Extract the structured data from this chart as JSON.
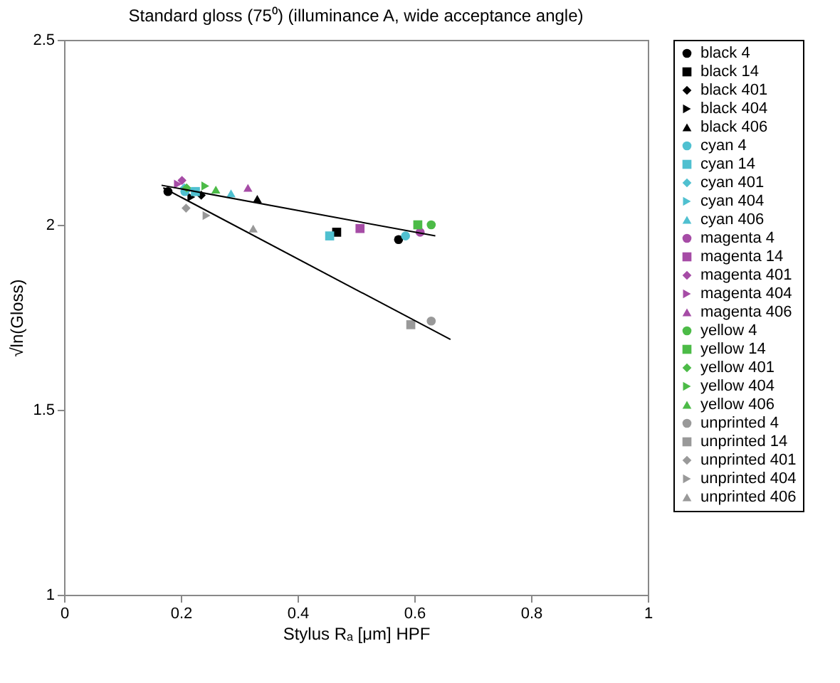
{
  "chart_data": {
    "type": "scatter",
    "title": "Standard gloss (75⁰) (illuminance A, wide acceptance angle)",
    "xlabel": "Stylus Rₐ [μm] HPF",
    "ylabel": "√ln(Gloss)",
    "xlim": [
      0,
      1
    ],
    "ylim": [
      1,
      2.5
    ],
    "xticks": [
      0,
      0.2,
      0.4,
      0.6,
      0.8,
      1
    ],
    "yticks": [
      1,
      1.5,
      2,
      2.5
    ],
    "grid": false,
    "legend": "right",
    "series": [
      {
        "name": "black 4",
        "color": "#000000",
        "marker": "circle",
        "x": [
          0.178,
          0.573
        ],
        "values": [
          2.09,
          1.96
        ]
      },
      {
        "name": "black 14",
        "color": "#000000",
        "marker": "square",
        "x": [
          0.467
        ],
        "values": [
          1.98
        ]
      },
      {
        "name": "black 401",
        "color": "#000000",
        "marker": "diamond",
        "x": [
          0.235
        ],
        "values": [
          2.08
        ]
      },
      {
        "name": "black 404",
        "color": "#000000",
        "marker": "triangle-right",
        "x": [
          0.218
        ],
        "values": [
          2.075
        ]
      },
      {
        "name": "black 406",
        "color": "#000000",
        "marker": "triangle",
        "x": [
          0.331
        ],
        "values": [
          2.07
        ]
      },
      {
        "name": "cyan 4",
        "color": "#4fc0d0",
        "marker": "circle",
        "x": [
          0.207,
          0.585
        ],
        "values": [
          2.09,
          1.97
        ]
      },
      {
        "name": "cyan 14",
        "color": "#4fc0d0",
        "marker": "square",
        "x": [
          0.225,
          0.455
        ],
        "values": [
          2.09,
          1.97
        ]
      },
      {
        "name": "cyan 401",
        "color": "#4fc0d0",
        "marker": "diamond",
        "x": [
          0.206
        ],
        "values": [
          2.1
        ]
      },
      {
        "name": "cyan 404",
        "color": "#4fc0d0",
        "marker": "triangle-right",
        "x": [
          0.215
        ],
        "values": [
          2.095
        ]
      },
      {
        "name": "cyan 406",
        "color": "#4fc0d0",
        "marker": "triangle",
        "x": [
          0.286
        ],
        "values": [
          2.085
        ]
      },
      {
        "name": "magenta 4",
        "color": "#a64ca6",
        "marker": "circle",
        "x": [
          0.61
        ],
        "values": [
          1.98
        ]
      },
      {
        "name": "magenta 14",
        "color": "#a64ca6",
        "marker": "square",
        "x": [
          0.507
        ],
        "values": [
          1.99
        ]
      },
      {
        "name": "magenta 401",
        "color": "#a64ca6",
        "marker": "diamond",
        "x": [
          0.202
        ],
        "values": [
          2.12
        ]
      },
      {
        "name": "magenta 404",
        "color": "#a64ca6",
        "marker": "triangle-right",
        "x": [
          0.195
        ],
        "values": [
          2.11
        ]
      },
      {
        "name": "magenta 406",
        "color": "#a64ca6",
        "marker": "triangle",
        "x": [
          0.315
        ],
        "values": [
          2.1
        ]
      },
      {
        "name": "yellow 4",
        "color": "#4cbb47",
        "marker": "circle",
        "x": [
          0.629
        ],
        "values": [
          2.0
        ]
      },
      {
        "name": "yellow 14",
        "color": "#4cbb47",
        "marker": "square",
        "x": [
          0.606
        ],
        "values": [
          2.0
        ]
      },
      {
        "name": "yellow 401",
        "color": "#4cbb47",
        "marker": "diamond",
        "x": [
          0.21
        ],
        "values": [
          2.1
        ]
      },
      {
        "name": "yellow 404",
        "color": "#4cbb47",
        "marker": "triangle-right",
        "x": [
          0.242
        ],
        "values": [
          2.105
        ]
      },
      {
        "name": "yellow 406",
        "color": "#4cbb47",
        "marker": "triangle",
        "x": [
          0.26
        ],
        "values": [
          2.095
        ]
      },
      {
        "name": "unprinted 4",
        "color": "#999999",
        "marker": "circle",
        "x": [
          0.629
        ],
        "values": [
          1.74
        ]
      },
      {
        "name": "unprinted 14",
        "color": "#999999",
        "marker": "square",
        "x": [
          0.594
        ],
        "values": [
          1.73
        ]
      },
      {
        "name": "unprinted 401",
        "color": "#999999",
        "marker": "diamond",
        "x": [
          0.209
        ],
        "values": [
          2.045
        ]
      },
      {
        "name": "unprinted 404",
        "color": "#999999",
        "marker": "triangle-right",
        "x": [
          0.244
        ],
        "values": [
          2.025
        ]
      },
      {
        "name": "unprinted 406",
        "color": "#999999",
        "marker": "triangle",
        "x": [
          0.324
        ],
        "values": [
          1.99
        ]
      },
      {
        "type": "line",
        "color": "#000000",
        "marker": "none",
        "x": [
          0.167,
          0.636
        ],
        "values": [
          2.107,
          1.97
        ]
      },
      {
        "type": "line",
        "color": "#000000",
        "marker": "none",
        "x": [
          0.17,
          0.662
        ],
        "values": [
          2.1,
          1.69
        ]
      }
    ]
  }
}
